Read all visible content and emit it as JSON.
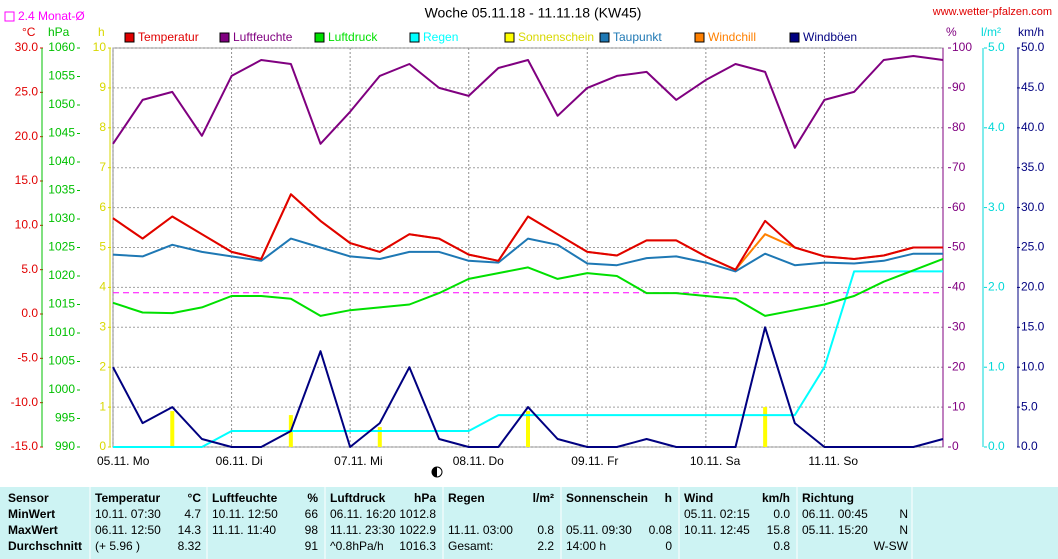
{
  "chart_data": {
    "type": "line",
    "title": "Woche 05.11.18 - 11.11.18 (KW45)",
    "source": "www.wetter-pfalzen.com",
    "monthly_avg": {
      "value": 2.4,
      "label": "2.4 Monat-Ø",
      "color": "#ff00ff",
      "axis": "y"
    },
    "grid": true,
    "grid_axis": "y3",
    "xlim": [
      0,
      168
    ],
    "xticks": [
      {
        "value": 0,
        "label": "05.11. Mo"
      },
      {
        "value": 24,
        "label": "06.11. Di"
      },
      {
        "value": 48,
        "label": "07.11. Mi"
      },
      {
        "value": 72,
        "label": "08.11. Do"
      },
      {
        "value": 96,
        "label": "09.11. Fr"
      },
      {
        "value": 120,
        "label": "10.11. Sa"
      },
      {
        "value": 144,
        "label": "11.11. So"
      }
    ],
    "yaxes": [
      {
        "id": "y",
        "side": "left",
        "label": "°C",
        "color": "#e00000",
        "lim": [
          -15,
          30
        ],
        "ticks": [
          {
            "value": -15,
            "label": "-15.0"
          },
          {
            "value": -10,
            "label": "-10.0"
          },
          {
            "value": -5,
            "label": "-5.0"
          },
          {
            "value": 0,
            "label": "0.0"
          },
          {
            "value": 5,
            "label": "5.0"
          },
          {
            "value": 10,
            "label": "10.0"
          },
          {
            "value": 15,
            "label": "15.0"
          },
          {
            "value": 20,
            "label": "20.0"
          },
          {
            "value": 25,
            "label": "25.0"
          },
          {
            "value": 30,
            "label": "30.0"
          }
        ]
      },
      {
        "id": "y2",
        "side": "left",
        "label": "hPa",
        "color": "#00c000",
        "lim": [
          990,
          1060
        ],
        "ticks": [
          990,
          995,
          1000,
          1005,
          1010,
          1015,
          1020,
          1025,
          1030,
          1035,
          1040,
          1045,
          1050,
          1055,
          1060
        ]
      },
      {
        "id": "y3",
        "side": "left",
        "label": "h",
        "color": "#d8d800",
        "lim": [
          0,
          10
        ],
        "ticks": [
          0,
          1,
          2,
          3,
          4,
          5,
          6,
          7,
          8,
          9,
          10
        ]
      },
      {
        "id": "y4",
        "side": "right",
        "label": "%",
        "color": "#800080",
        "lim": [
          0,
          100
        ],
        "ticks": [
          0,
          10,
          20,
          30,
          40,
          50,
          60,
          70,
          80,
          90,
          100
        ]
      },
      {
        "id": "y5",
        "side": "right",
        "label": "l/m²",
        "color": "#00d8d8",
        "lim": [
          0,
          5
        ],
        "ticks": [
          {
            "value": 0,
            "label": "0.0"
          },
          {
            "value": 1,
            "label": "1.0"
          },
          {
            "value": 2,
            "label": "2.0"
          },
          {
            "value": 3,
            "label": "3.0"
          },
          {
            "value": 4,
            "label": "4.0"
          },
          {
            "value": 5,
            "label": "5.0"
          }
        ]
      },
      {
        "id": "y6",
        "side": "right",
        "label": "km/h",
        "color": "#000080",
        "lim": [
          0,
          50
        ],
        "ticks": [
          {
            "value": 0,
            "label": "0.0"
          },
          {
            "value": 5,
            "label": "5.0"
          },
          {
            "value": 10,
            "label": "10.0"
          },
          {
            "value": 15,
            "label": "15.0"
          },
          {
            "value": 20,
            "label": "20.0"
          },
          {
            "value": 25,
            "label": "25.0"
          },
          {
            "value": 30,
            "label": "30.0"
          },
          {
            "value": 35,
            "label": "35.0"
          },
          {
            "value": 40,
            "label": "40.0"
          },
          {
            "value": 45,
            "label": "45.0"
          },
          {
            "value": 50,
            "label": "50.0"
          }
        ]
      }
    ],
    "x": [
      0,
      6,
      12,
      18,
      24,
      30,
      36,
      42,
      48,
      54,
      60,
      66,
      72,
      78,
      84,
      90,
      96,
      102,
      108,
      114,
      120,
      126,
      132,
      138,
      144,
      150,
      156,
      162,
      168
    ],
    "series": [
      {
        "name": "Temperatur",
        "color": "#e00000",
        "axis": "y",
        "style": "line",
        "values": [
          10.8,
          8.5,
          11.0,
          9.0,
          7.0,
          6.2,
          13.5,
          10.5,
          8.0,
          7.0,
          9.0,
          8.5,
          6.7,
          6.0,
          11.0,
          9.0,
          7.0,
          6.6,
          8.3,
          8.3,
          6.5,
          5.0,
          10.5,
          7.5,
          6.5,
          6.2,
          6.6,
          7.5,
          7.5
        ]
      },
      {
        "name": "Luftfeuchte",
        "color": "#800080",
        "axis": "y4",
        "style": "line",
        "values": [
          76,
          87,
          89,
          78,
          93,
          97,
          96,
          76,
          84,
          93,
          96,
          90,
          88,
          95,
          97,
          83,
          90,
          93,
          94,
          87,
          92,
          96,
          94,
          75,
          87,
          89,
          97,
          98,
          97
        ]
      },
      {
        "name": "Luftdruck",
        "color": "#00e000",
        "axis": "y2",
        "style": "line",
        "values": [
          1015.3,
          1013.6,
          1013.5,
          1014.5,
          1016.5,
          1016.5,
          1016.0,
          1013.0,
          1014.0,
          1014.5,
          1015.0,
          1017.0,
          1019.5,
          1020.5,
          1021.5,
          1019.5,
          1020.5,
          1020.0,
          1017.0,
          1017.0,
          1016.5,
          1016.0,
          1013.0,
          1014.0,
          1015.0,
          1016.5,
          1019.0,
          1021.0,
          1023.0
        ]
      },
      {
        "name": "Regen",
        "color": "#00ffff",
        "axis": "y5",
        "style": "line",
        "values": [
          0,
          0,
          0,
          0,
          0.2,
          0.2,
          0.2,
          0.2,
          0.2,
          0.2,
          0.2,
          0.2,
          0.2,
          0.4,
          0.4,
          0.4,
          0.4,
          0.4,
          0.4,
          0.4,
          0.4,
          0.4,
          0.4,
          0.4,
          1.0,
          2.2,
          2.2,
          2.2,
          2.2
        ]
      },
      {
        "name": "Sonnenschein",
        "color": "#ffff00",
        "axis": "y3",
        "style": "bar",
        "values": [
          0,
          0,
          0.9,
          0,
          0,
          0,
          0.8,
          0,
          0,
          0.5,
          0,
          0,
          0,
          0,
          0.9,
          0,
          0,
          0,
          0,
          0,
          0,
          0,
          1.0,
          0,
          0,
          0,
          0,
          0,
          0
        ]
      },
      {
        "name": "Taupunkt",
        "color": "#1e78b4",
        "axis": "y",
        "style": "line",
        "values": [
          6.7,
          6.5,
          7.8,
          7.0,
          6.5,
          6.0,
          8.5,
          7.5,
          6.5,
          6.2,
          7.0,
          7.0,
          6.0,
          5.8,
          8.5,
          7.8,
          5.7,
          5.5,
          6.3,
          6.5,
          5.8,
          4.8,
          6.8,
          5.5,
          5.8,
          5.7,
          6.0,
          6.8,
          6.8
        ]
      },
      {
        "name": "Windchill",
        "color": "#ff8000",
        "axis": "y",
        "style": "line",
        "values": [
          10.8,
          8.5,
          11.0,
          9.0,
          7.0,
          6.2,
          13.5,
          10.5,
          8.0,
          7.0,
          9.0,
          8.5,
          6.7,
          6.0,
          11.0,
          9.0,
          7.0,
          6.6,
          8.3,
          8.3,
          6.5,
          5.0,
          9.0,
          7.5,
          6.5,
          6.2,
          6.6,
          7.5,
          7.5
        ]
      },
      {
        "name": "Windböen",
        "color": "#000080",
        "axis": "y6",
        "style": "line",
        "values": [
          10,
          3,
          5,
          1,
          0,
          0,
          2,
          12,
          0,
          3,
          10,
          1,
          0,
          0,
          5,
          1,
          0,
          0,
          1,
          0,
          0,
          0,
          15,
          3,
          0,
          0,
          0,
          0,
          1
        ]
      }
    ]
  },
  "table": {
    "header": {
      "label": "Sensor",
      "columns": [
        {
          "name": "Temperatur",
          "unit": "°C"
        },
        {
          "name": "Luftfeuchte",
          "unit": "%"
        },
        {
          "name": "Luftdruck",
          "unit": "hPa"
        },
        {
          "name": "Regen",
          "unit": "l/m²"
        },
        {
          "name": "Sonnenschein",
          "unit": "h"
        },
        {
          "name": "Wind",
          "unit": "km/h"
        },
        {
          "name": "Richtung",
          "unit": null
        }
      ]
    },
    "rows": [
      {
        "label": "MinWert",
        "cells": [
          [
            "10.11. 07:30",
            "4.7"
          ],
          [
            "10.11. 12:50",
            "66"
          ],
          [
            "06.11. 16:20",
            "1012.8"
          ],
          [
            null,
            null
          ],
          [
            null,
            null
          ],
          [
            "05.11. 02:15",
            "0.0"
          ],
          [
            "06.11. 00:45",
            "N"
          ]
        ]
      },
      {
        "label": "MaxWert",
        "cells": [
          [
            "06.11. 12:50",
            "14.3"
          ],
          [
            "11.11. 11:40",
            "98"
          ],
          [
            "11.11. 23:30",
            "1022.9"
          ],
          [
            "11.11. 03:00",
            "0.8"
          ],
          [
            "05.11. 09:30",
            "0.08"
          ],
          [
            "10.11. 12:45",
            "15.8"
          ],
          [
            "05.11. 15:20",
            "N"
          ]
        ]
      },
      {
        "label": "Durchschnitt",
        "cells": [
          [
            "(+ 5.96 )",
            "8.32"
          ],
          [
            null,
            "91"
          ],
          [
            "^0.8hPa/h",
            "1016.3"
          ],
          [
            "Gesamt:",
            "2.2"
          ],
          [
            "14:00 h",
            "0"
          ],
          [
            null,
            "0.8"
          ],
          [
            null,
            "W-SW"
          ]
        ]
      }
    ]
  }
}
